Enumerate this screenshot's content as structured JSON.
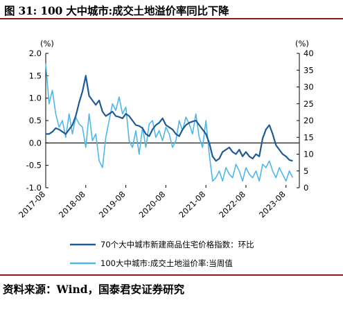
{
  "header": {
    "title": "图 31: 100 大中城市:成交土地溢价率同比下降"
  },
  "footer": {
    "source": "资料来源：Wind，国泰君安证券研究"
  },
  "chart_data": {
    "type": "line",
    "x_tick_labels": [
      "2017-08",
      "2018-08",
      "2019-08",
      "2020-08",
      "2021-08",
      "2022-08",
      "2023-08"
    ],
    "y_left": {
      "unit": "(%)",
      "ylim": [
        -1.0,
        2.0
      ],
      "ticks": [
        "2.0",
        "1.5",
        "1.0",
        "0.5",
        "0.0",
        "-0.5",
        "-1.0"
      ]
    },
    "y_right": {
      "unit": "(%)",
      "ylim": [
        0,
        40
      ],
      "ticks": [
        "40",
        "35",
        "30",
        "25",
        "20",
        "15",
        "10",
        "5",
        "0"
      ]
    },
    "grid": false,
    "legend_position": "bottom",
    "series": [
      {
        "name": "70个大中城市新建商品住宅价格指数：环比",
        "axis": "left",
        "color": "#1f5a96",
        "x": [
          "2017-08",
          "2017-09",
          "2017-10",
          "2017-11",
          "2017-12",
          "2018-01",
          "2018-02",
          "2018-03",
          "2018-04",
          "2018-05",
          "2018-06",
          "2018-07",
          "2018-08",
          "2018-09",
          "2018-10",
          "2018-11",
          "2018-12",
          "2019-01",
          "2019-02",
          "2019-03",
          "2019-04",
          "2019-05",
          "2019-06",
          "2019-07",
          "2019-08",
          "2019-09",
          "2019-10",
          "2019-11",
          "2019-12",
          "2020-01",
          "2020-02",
          "2020-03",
          "2020-04",
          "2020-05",
          "2020-06",
          "2020-07",
          "2020-08",
          "2020-09",
          "2020-10",
          "2020-11",
          "2020-12",
          "2021-01",
          "2021-02",
          "2021-03",
          "2021-04",
          "2021-05",
          "2021-06",
          "2021-07",
          "2021-08",
          "2021-09",
          "2021-10",
          "2021-11",
          "2021-12",
          "2022-01",
          "2022-02",
          "2022-03",
          "2022-04",
          "2022-05",
          "2022-06",
          "2022-07",
          "2022-08",
          "2022-09",
          "2022-10",
          "2022-11",
          "2022-12",
          "2023-01",
          "2023-02",
          "2023-03",
          "2023-04",
          "2023-05",
          "2023-06",
          "2023-07",
          "2023-08",
          "2023-09",
          "2023-10"
        ],
        "values": [
          0.2,
          0.2,
          0.25,
          0.33,
          0.3,
          0.25,
          0.2,
          0.3,
          0.4,
          0.6,
          0.9,
          1.15,
          1.5,
          1.05,
          0.95,
          0.85,
          0.95,
          0.7,
          0.6,
          0.65,
          0.7,
          0.6,
          0.58,
          0.55,
          0.65,
          0.6,
          0.5,
          0.4,
          0.38,
          0.33,
          0.2,
          0.15,
          0.3,
          0.4,
          0.45,
          0.55,
          0.4,
          0.35,
          0.3,
          0.2,
          0.15,
          0.3,
          0.4,
          0.45,
          0.48,
          0.5,
          0.4,
          0.3,
          0.2,
          0.0,
          -0.3,
          -0.4,
          -0.35,
          -0.2,
          -0.15,
          -0.1,
          -0.2,
          -0.25,
          -0.15,
          -0.3,
          -0.2,
          -0.3,
          -0.35,
          -0.25,
          -0.3,
          0.1,
          0.3,
          0.4,
          0.2,
          -0.05,
          -0.15,
          -0.25,
          -0.3,
          -0.38,
          -0.4
        ]
      },
      {
        "name": "100大中城市:成交土地溢价率:当周值",
        "axis": "right",
        "color": "#4fb6e8",
        "x": [
          "2017-08",
          "2017-09",
          "2017-10",
          "2017-11",
          "2017-12",
          "2018-01",
          "2018-02",
          "2018-03",
          "2018-04",
          "2018-05",
          "2018-06",
          "2018-07",
          "2018-08",
          "2018-09",
          "2018-10",
          "2018-11",
          "2018-12",
          "2019-01",
          "2019-02",
          "2019-03",
          "2019-04",
          "2019-05",
          "2019-06",
          "2019-07",
          "2019-08",
          "2019-09",
          "2019-10",
          "2019-11",
          "2019-12",
          "2020-01",
          "2020-02",
          "2020-03",
          "2020-04",
          "2020-05",
          "2020-06",
          "2020-07",
          "2020-08",
          "2020-09",
          "2020-10",
          "2020-11",
          "2020-12",
          "2021-01",
          "2021-02",
          "2021-03",
          "2021-04",
          "2021-05",
          "2021-06",
          "2021-07",
          "2021-08",
          "2021-09",
          "2021-10",
          "2021-11",
          "2021-12",
          "2022-01",
          "2022-02",
          "2022-03",
          "2022-04",
          "2022-05",
          "2022-06",
          "2022-07",
          "2022-08",
          "2022-09",
          "2022-10",
          "2022-11",
          "2022-12",
          "2023-01",
          "2023-02",
          "2023-03",
          "2023-04",
          "2023-05",
          "2023-06",
          "2023-07",
          "2023-08",
          "2023-09",
          "2023-10"
        ],
        "values": [
          37,
          25,
          29,
          22,
          18,
          20,
          15,
          22,
          16,
          21,
          19,
          18,
          12,
          22,
          14,
          16,
          8,
          6,
          15,
          20,
          25,
          23,
          27,
          22,
          24,
          14,
          12,
          17,
          10,
          18,
          12,
          19,
          20,
          15,
          17,
          14,
          18,
          16,
          12,
          14,
          20,
          17,
          21,
          19,
          16,
          22,
          15,
          12,
          20,
          10,
          2,
          3,
          5,
          2,
          6,
          4,
          3,
          7,
          5,
          2,
          6,
          4,
          3,
          5,
          2,
          7,
          6,
          8,
          5,
          3,
          6,
          4,
          2,
          5,
          3
        ]
      }
    ]
  }
}
